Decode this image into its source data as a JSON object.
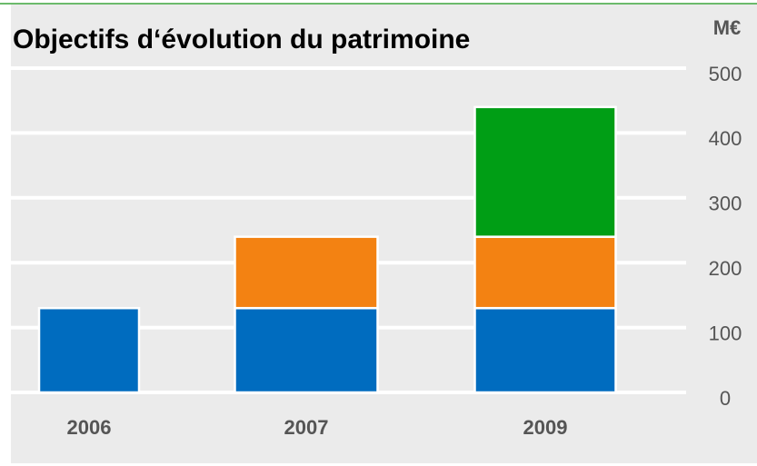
{
  "chart_data": {
    "type": "stacked_bar",
    "title": "Objectifs d‘évolution du patrimoine",
    "y_label": "M€",
    "categories": [
      "2006",
      "2007",
      "2009"
    ],
    "series": [
      {
        "color": "#006cbf",
        "values": [
          130,
          130,
          130
        ]
      },
      {
        "color": "#f38212",
        "values": [
          null,
          110,
          110
        ]
      },
      {
        "color": "#009e15",
        "values": [
          null,
          null,
          200
        ]
      }
    ],
    "ylim": [
      0,
      500
    ],
    "yticks": [
      0,
      100,
      200,
      300,
      400,
      500
    ],
    "grid": true
  }
}
